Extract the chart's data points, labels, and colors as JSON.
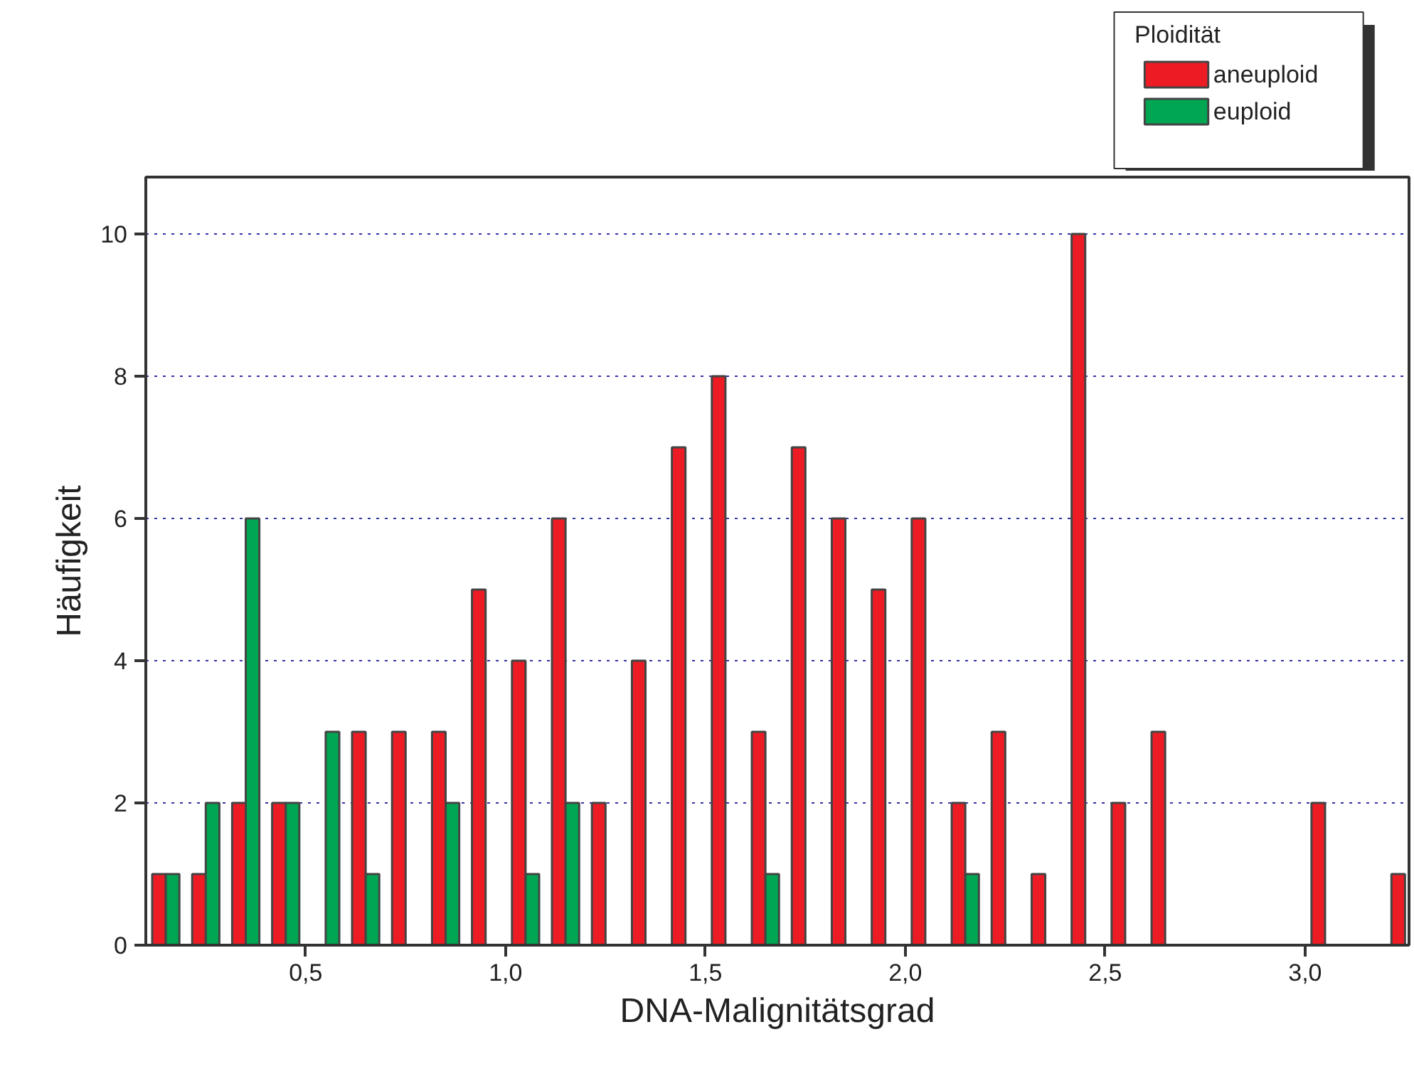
{
  "chart_data": {
    "type": "bar",
    "xlabel": "DNA-Malignitätsgrad",
    "ylabel": "Häufigkeit",
    "legend_title": "Ploidität",
    "x": [
      0.15,
      0.25,
      0.35,
      0.45,
      0.55,
      0.65,
      0.75,
      0.85,
      0.95,
      1.05,
      1.15,
      1.25,
      1.35,
      1.45,
      1.55,
      1.65,
      1.75,
      1.85,
      1.95,
      2.05,
      2.15,
      2.25,
      2.35,
      2.45,
      2.55,
      2.65,
      2.75,
      2.85,
      2.95,
      3.05,
      3.15,
      3.25
    ],
    "series": [
      {
        "name": "aneuploid",
        "color": "#ed1c24",
        "values": [
          1,
          1,
          2,
          2,
          null,
          3,
          3,
          3,
          5,
          4,
          6,
          2,
          4,
          7,
          8,
          3,
          7,
          6,
          5,
          6,
          2,
          3,
          1,
          10,
          2,
          3,
          null,
          null,
          null,
          2,
          null,
          1
        ]
      },
      {
        "name": "euploid",
        "color": "#00a651",
        "values": [
          1,
          2,
          6,
          2,
          3,
          1,
          null,
          2,
          null,
          1,
          2,
          null,
          null,
          null,
          null,
          1,
          null,
          null,
          null,
          null,
          1,
          null,
          null,
          null,
          null,
          null,
          null,
          null,
          null,
          null,
          null,
          null
        ]
      }
    ],
    "xlim": [
      0.1,
      3.26
    ],
    "ylim": [
      0,
      10.8
    ],
    "xticks": [
      {
        "value": 0.5,
        "label": "0,5"
      },
      {
        "value": 1.0,
        "label": "1,0"
      },
      {
        "value": 1.5,
        "label": "1,5"
      },
      {
        "value": 2.0,
        "label": "2,0"
      },
      {
        "value": 2.5,
        "label": "2,5"
      },
      {
        "value": 3.0,
        "label": "3,0"
      }
    ],
    "yticks": [
      0,
      2,
      4,
      6,
      8,
      10
    ],
    "grid": "y",
    "legend": "top right"
  }
}
